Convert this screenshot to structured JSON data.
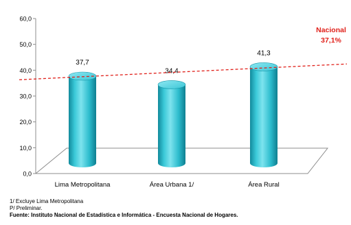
{
  "chart_data": {
    "type": "bar",
    "categories": [
      "Lima Metropolitana",
      "Área Urbana 1/",
      "Área Rural"
    ],
    "values": [
      37.7,
      34.4,
      41.3
    ],
    "value_labels": [
      "37,7",
      "34,4",
      "41,3"
    ],
    "y_ticks": [
      "0,0",
      "10,0",
      "20,0",
      "30,0",
      "40,0",
      "50,0",
      "60,0"
    ],
    "ylim": [
      0,
      60
    ],
    "reference_line": {
      "value": 37.1,
      "label_line1": "Nacional",
      "label_line2": "37,1%",
      "color": "#e0201a"
    },
    "bar_color": "#2fc3d3",
    "grid": false,
    "legend": "none"
  },
  "notes": {
    "note1": "1/ Excluye Lima Metropolitana",
    "note2": "P/ Preliminar.",
    "source": "Fuente: Instituto Nacional de Estadística e Informática - Encuesta Nacional de Hogares."
  }
}
